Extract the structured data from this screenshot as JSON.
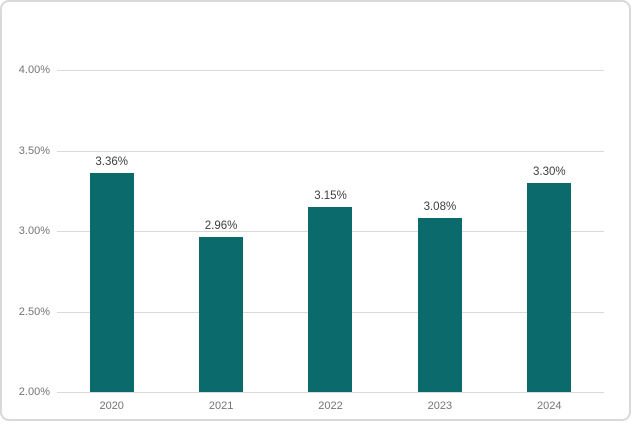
{
  "chart_data": {
    "type": "bar",
    "categories": [
      "2020",
      "2021",
      "2022",
      "2023",
      "2024"
    ],
    "values": [
      3.36,
      2.96,
      3.15,
      3.08,
      3.3
    ],
    "data_labels": [
      "3.36%",
      "2.96%",
      "3.15%",
      "3.08%",
      "3.30%"
    ],
    "title": "",
    "xlabel": "",
    "ylabel": "",
    "ylim": [
      2.0,
      4.0
    ],
    "yticks": [
      {
        "value": 4.0,
        "label": "4.00%"
      },
      {
        "value": 3.5,
        "label": "3.50%"
      },
      {
        "value": 3.0,
        "label": "3.00%"
      },
      {
        "value": 2.5,
        "label": "2.50%"
      },
      {
        "value": 2.0,
        "label": "2.00%"
      }
    ],
    "grid": true,
    "legend": "none",
    "colors": {
      "bar": "#0B6B6C",
      "gridline": "#D9D9D9",
      "axis_text": "#757575",
      "data_label_text": "#404040",
      "frame_border": "#D9D9D9",
      "background": "#FFFFFF"
    }
  }
}
